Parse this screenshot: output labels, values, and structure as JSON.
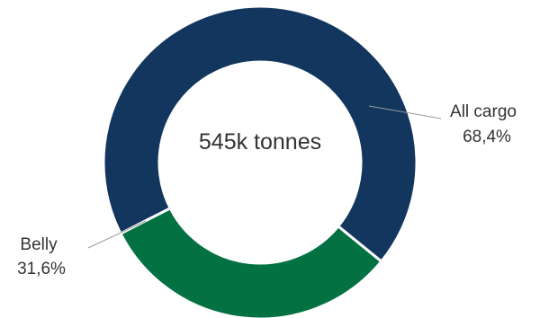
{
  "chart_data": {
    "type": "pie",
    "donut": true,
    "center_label": "545k tonnes",
    "slices": [
      {
        "name": "All cargo",
        "value": 68.4,
        "label": "68,4%",
        "color": "#13365f"
      },
      {
        "name": "Belly",
        "value": 31.6,
        "label": "31,6%",
        "color": "#047143"
      }
    ]
  }
}
